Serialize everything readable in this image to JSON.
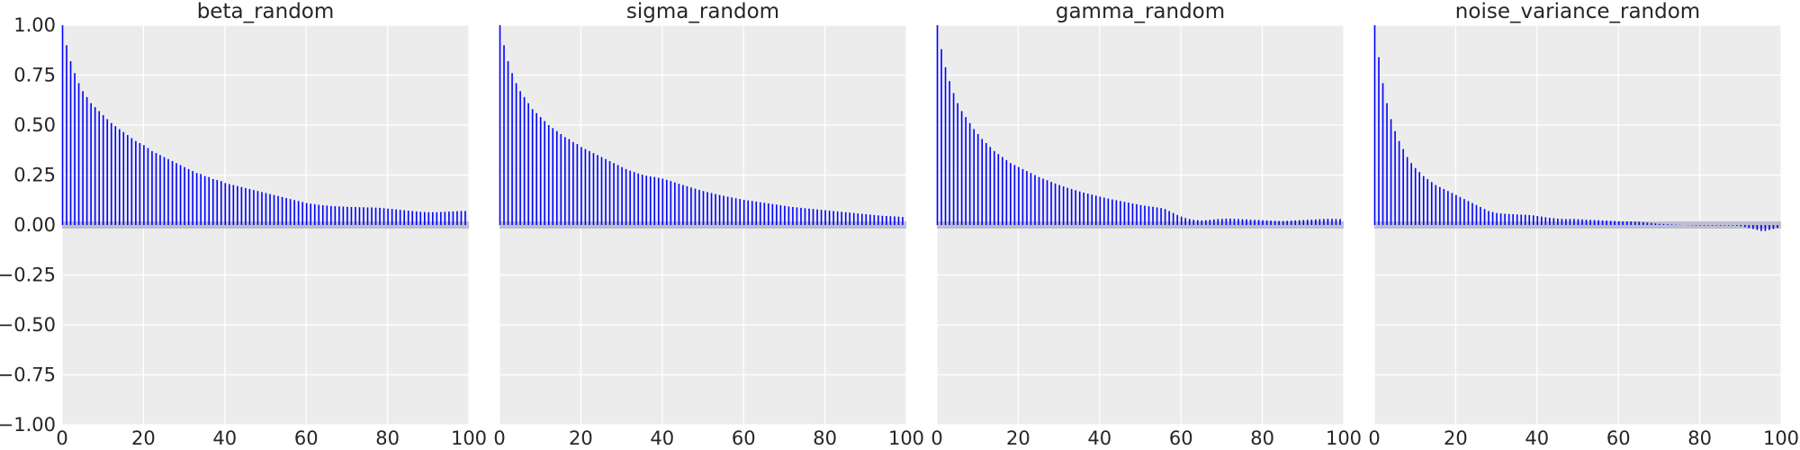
{
  "chart_data": [
    {
      "type": "bar",
      "title": "beta_random",
      "xlim": [
        0,
        100
      ],
      "ylim": [
        -1,
        1
      ],
      "xticks": [
        0,
        20,
        40,
        60,
        80,
        100
      ],
      "xtick_labels": [
        "0",
        "20",
        "40",
        "60",
        "80",
        "100"
      ],
      "yticks": [
        -1.0,
        -0.75,
        -0.5,
        -0.25,
        0.0,
        0.25,
        0.5,
        0.75,
        1.0
      ],
      "ytick_labels": [
        "−1.00",
        "−0.75",
        "−0.50",
        "−0.25",
        "0.00",
        "0.25",
        "0.50",
        "0.75",
        "1.00"
      ],
      "grid": true,
      "x": [
        0,
        1,
        2,
        3,
        4,
        5,
        6,
        7,
        8,
        9,
        10,
        11,
        12,
        13,
        14,
        15,
        16,
        17,
        18,
        19,
        20,
        21,
        22,
        23,
        24,
        25,
        26,
        27,
        28,
        29,
        30,
        31,
        32,
        33,
        34,
        35,
        36,
        37,
        38,
        39,
        40,
        41,
        42,
        43,
        44,
        45,
        46,
        47,
        48,
        49,
        50,
        51,
        52,
        53,
        54,
        55,
        56,
        57,
        58,
        59,
        60,
        61,
        62,
        63,
        64,
        65,
        66,
        67,
        68,
        69,
        70,
        71,
        72,
        73,
        74,
        75,
        76,
        77,
        78,
        79,
        80,
        81,
        82,
        83,
        84,
        85,
        86,
        87,
        88,
        89,
        90,
        91,
        92,
        93,
        94,
        95,
        96,
        97,
        98,
        99
      ],
      "values": [
        1.0,
        0.9,
        0.82,
        0.76,
        0.71,
        0.67,
        0.64,
        0.61,
        0.59,
        0.57,
        0.55,
        0.53,
        0.51,
        0.495,
        0.48,
        0.465,
        0.45,
        0.435,
        0.42,
        0.41,
        0.4,
        0.385,
        0.37,
        0.36,
        0.35,
        0.34,
        0.33,
        0.32,
        0.31,
        0.3,
        0.29,
        0.28,
        0.27,
        0.26,
        0.255,
        0.245,
        0.24,
        0.23,
        0.225,
        0.22,
        0.21,
        0.205,
        0.2,
        0.195,
        0.19,
        0.185,
        0.18,
        0.175,
        0.17,
        0.165,
        0.16,
        0.155,
        0.15,
        0.145,
        0.14,
        0.135,
        0.13,
        0.125,
        0.12,
        0.115,
        0.11,
        0.107,
        0.104,
        0.101,
        0.099,
        0.097,
        0.095,
        0.094,
        0.093,
        0.092,
        0.091,
        0.09,
        0.09,
        0.089,
        0.089,
        0.088,
        0.088,
        0.087,
        0.086,
        0.084,
        0.082,
        0.08,
        0.078,
        0.076,
        0.074,
        0.072,
        0.07,
        0.068,
        0.066,
        0.065,
        0.064,
        0.064,
        0.064,
        0.065,
        0.066,
        0.067,
        0.068,
        0.069,
        0.07,
        0.07
      ]
    },
    {
      "type": "bar",
      "title": "sigma_random",
      "xlim": [
        0,
        100
      ],
      "ylim": [
        -1,
        1
      ],
      "xticks": [
        0,
        20,
        40,
        60,
        80,
        100
      ],
      "xtick_labels": [
        "0",
        "20",
        "40",
        "60",
        "80",
        "100"
      ],
      "grid": true,
      "x": [
        0,
        1,
        2,
        3,
        4,
        5,
        6,
        7,
        8,
        9,
        10,
        11,
        12,
        13,
        14,
        15,
        16,
        17,
        18,
        19,
        20,
        21,
        22,
        23,
        24,
        25,
        26,
        27,
        28,
        29,
        30,
        31,
        32,
        33,
        34,
        35,
        36,
        37,
        38,
        39,
        40,
        41,
        42,
        43,
        44,
        45,
        46,
        47,
        48,
        49,
        50,
        51,
        52,
        53,
        54,
        55,
        56,
        57,
        58,
        59,
        60,
        61,
        62,
        63,
        64,
        65,
        66,
        67,
        68,
        69,
        70,
        71,
        72,
        73,
        74,
        75,
        76,
        77,
        78,
        79,
        80,
        81,
        82,
        83,
        84,
        85,
        86,
        87,
        88,
        89,
        90,
        91,
        92,
        93,
        94,
        95,
        96,
        97,
        98,
        99
      ],
      "values": [
        1.0,
        0.9,
        0.82,
        0.76,
        0.71,
        0.67,
        0.64,
        0.61,
        0.58,
        0.56,
        0.54,
        0.52,
        0.5,
        0.485,
        0.47,
        0.455,
        0.44,
        0.43,
        0.415,
        0.405,
        0.39,
        0.38,
        0.37,
        0.36,
        0.35,
        0.34,
        0.33,
        0.32,
        0.31,
        0.3,
        0.29,
        0.28,
        0.272,
        0.265,
        0.258,
        0.252,
        0.247,
        0.243,
        0.24,
        0.236,
        0.232,
        0.226,
        0.22,
        0.213,
        0.206,
        0.2,
        0.194,
        0.188,
        0.182,
        0.176,
        0.17,
        0.165,
        0.16,
        0.155,
        0.15,
        0.146,
        0.142,
        0.138,
        0.134,
        0.13,
        0.126,
        0.123,
        0.12,
        0.117,
        0.114,
        0.111,
        0.108,
        0.105,
        0.102,
        0.099,
        0.096,
        0.093,
        0.09,
        0.088,
        0.086,
        0.084,
        0.082,
        0.08,
        0.078,
        0.076,
        0.074,
        0.072,
        0.07,
        0.068,
        0.066,
        0.064,
        0.062,
        0.06,
        0.058,
        0.056,
        0.054,
        0.052,
        0.05,
        0.048,
        0.046,
        0.045,
        0.044,
        0.043,
        0.042,
        0.04
      ]
    },
    {
      "type": "bar",
      "title": "gamma_random",
      "xlim": [
        0,
        100
      ],
      "ylim": [
        -1,
        1
      ],
      "xticks": [
        0,
        20,
        40,
        60,
        80,
        100
      ],
      "xtick_labels": [
        "0",
        "20",
        "40",
        "60",
        "80",
        "100"
      ],
      "grid": true,
      "x": [
        0,
        1,
        2,
        3,
        4,
        5,
        6,
        7,
        8,
        9,
        10,
        11,
        12,
        13,
        14,
        15,
        16,
        17,
        18,
        19,
        20,
        21,
        22,
        23,
        24,
        25,
        26,
        27,
        28,
        29,
        30,
        31,
        32,
        33,
        34,
        35,
        36,
        37,
        38,
        39,
        40,
        41,
        42,
        43,
        44,
        45,
        46,
        47,
        48,
        49,
        50,
        51,
        52,
        53,
        54,
        55,
        56,
        57,
        58,
        59,
        60,
        61,
        62,
        63,
        64,
        65,
        66,
        67,
        68,
        69,
        70,
        71,
        72,
        73,
        74,
        75,
        76,
        77,
        78,
        79,
        80,
        81,
        82,
        83,
        84,
        85,
        86,
        87,
        88,
        89,
        90,
        91,
        92,
        93,
        94,
        95,
        96,
        97,
        98,
        99
      ],
      "values": [
        1.0,
        0.88,
        0.79,
        0.72,
        0.66,
        0.61,
        0.57,
        0.54,
        0.51,
        0.48,
        0.455,
        0.43,
        0.41,
        0.39,
        0.37,
        0.355,
        0.34,
        0.325,
        0.31,
        0.3,
        0.29,
        0.28,
        0.27,
        0.26,
        0.25,
        0.24,
        0.232,
        0.224,
        0.216,
        0.208,
        0.2,
        0.193,
        0.186,
        0.18,
        0.174,
        0.168,
        0.162,
        0.157,
        0.152,
        0.147,
        0.142,
        0.137,
        0.132,
        0.128,
        0.124,
        0.12,
        0.116,
        0.112,
        0.108,
        0.104,
        0.1,
        0.097,
        0.094,
        0.091,
        0.088,
        0.085,
        0.08,
        0.07,
        0.06,
        0.05,
        0.042,
        0.035,
        0.03,
        0.026,
        0.024,
        0.023,
        0.024,
        0.026,
        0.028,
        0.03,
        0.031,
        0.032,
        0.032,
        0.031,
        0.03,
        0.029,
        0.028,
        0.027,
        0.026,
        0.025,
        0.024,
        0.023,
        0.022,
        0.021,
        0.02,
        0.02,
        0.021,
        0.022,
        0.023,
        0.024,
        0.025,
        0.026,
        0.027,
        0.028,
        0.029,
        0.03,
        0.031,
        0.031,
        0.03,
        0.03
      ]
    },
    {
      "type": "bar",
      "title": "noise_variance_random",
      "xlim": [
        0,
        100
      ],
      "ylim": [
        -1,
        1
      ],
      "xticks": [
        0,
        20,
        40,
        60,
        80,
        100
      ],
      "xtick_labels": [
        "0",
        "20",
        "40",
        "60",
        "80",
        "100"
      ],
      "grid": true,
      "x": [
        0,
        1,
        2,
        3,
        4,
        5,
        6,
        7,
        8,
        9,
        10,
        11,
        12,
        13,
        14,
        15,
        16,
        17,
        18,
        19,
        20,
        21,
        22,
        23,
        24,
        25,
        26,
        27,
        28,
        29,
        30,
        31,
        32,
        33,
        34,
        35,
        36,
        37,
        38,
        39,
        40,
        41,
        42,
        43,
        44,
        45,
        46,
        47,
        48,
        49,
        50,
        51,
        52,
        53,
        54,
        55,
        56,
        57,
        58,
        59,
        60,
        61,
        62,
        63,
        64,
        65,
        66,
        67,
        68,
        69,
        70,
        71,
        72,
        73,
        74,
        75,
        76,
        77,
        78,
        79,
        80,
        81,
        82,
        83,
        84,
        85,
        86,
        87,
        88,
        89,
        90,
        91,
        92,
        93,
        94,
        95,
        96,
        97,
        98,
        99
      ],
      "values": [
        1.0,
        0.84,
        0.71,
        0.61,
        0.53,
        0.47,
        0.42,
        0.38,
        0.34,
        0.31,
        0.285,
        0.265,
        0.245,
        0.23,
        0.215,
        0.2,
        0.19,
        0.18,
        0.17,
        0.16,
        0.15,
        0.14,
        0.13,
        0.12,
        0.11,
        0.1,
        0.09,
        0.08,
        0.07,
        0.065,
        0.06,
        0.058,
        0.056,
        0.055,
        0.054,
        0.053,
        0.052,
        0.051,
        0.05,
        0.048,
        0.045,
        0.042,
        0.039,
        0.036,
        0.034,
        0.032,
        0.031,
        0.03,
        0.03,
        0.03,
        0.029,
        0.028,
        0.027,
        0.026,
        0.025,
        0.024,
        0.023,
        0.022,
        0.021,
        0.02,
        0.019,
        0.018,
        0.018,
        0.018,
        0.017,
        0.016,
        0.014,
        0.012,
        0.01,
        0.008,
        0.006,
        0.005,
        0.004,
        0.003,
        0.002,
        0.001,
        0.0,
        -0.001,
        -0.002,
        -0.003,
        -0.003,
        -0.003,
        -0.003,
        -0.003,
        -0.003,
        -0.003,
        -0.003,
        -0.003,
        -0.003,
        -0.004,
        -0.006,
        -0.01,
        -0.015,
        -0.02,
        -0.025,
        -0.03,
        -0.03,
        -0.025,
        -0.02,
        -0.015
      ]
    }
  ],
  "colors": {
    "bar": "#0000ff",
    "axes_background": "#ececec",
    "grid": "#ffffff",
    "zero_band": "#b7b9cc",
    "text": "#262626"
  }
}
